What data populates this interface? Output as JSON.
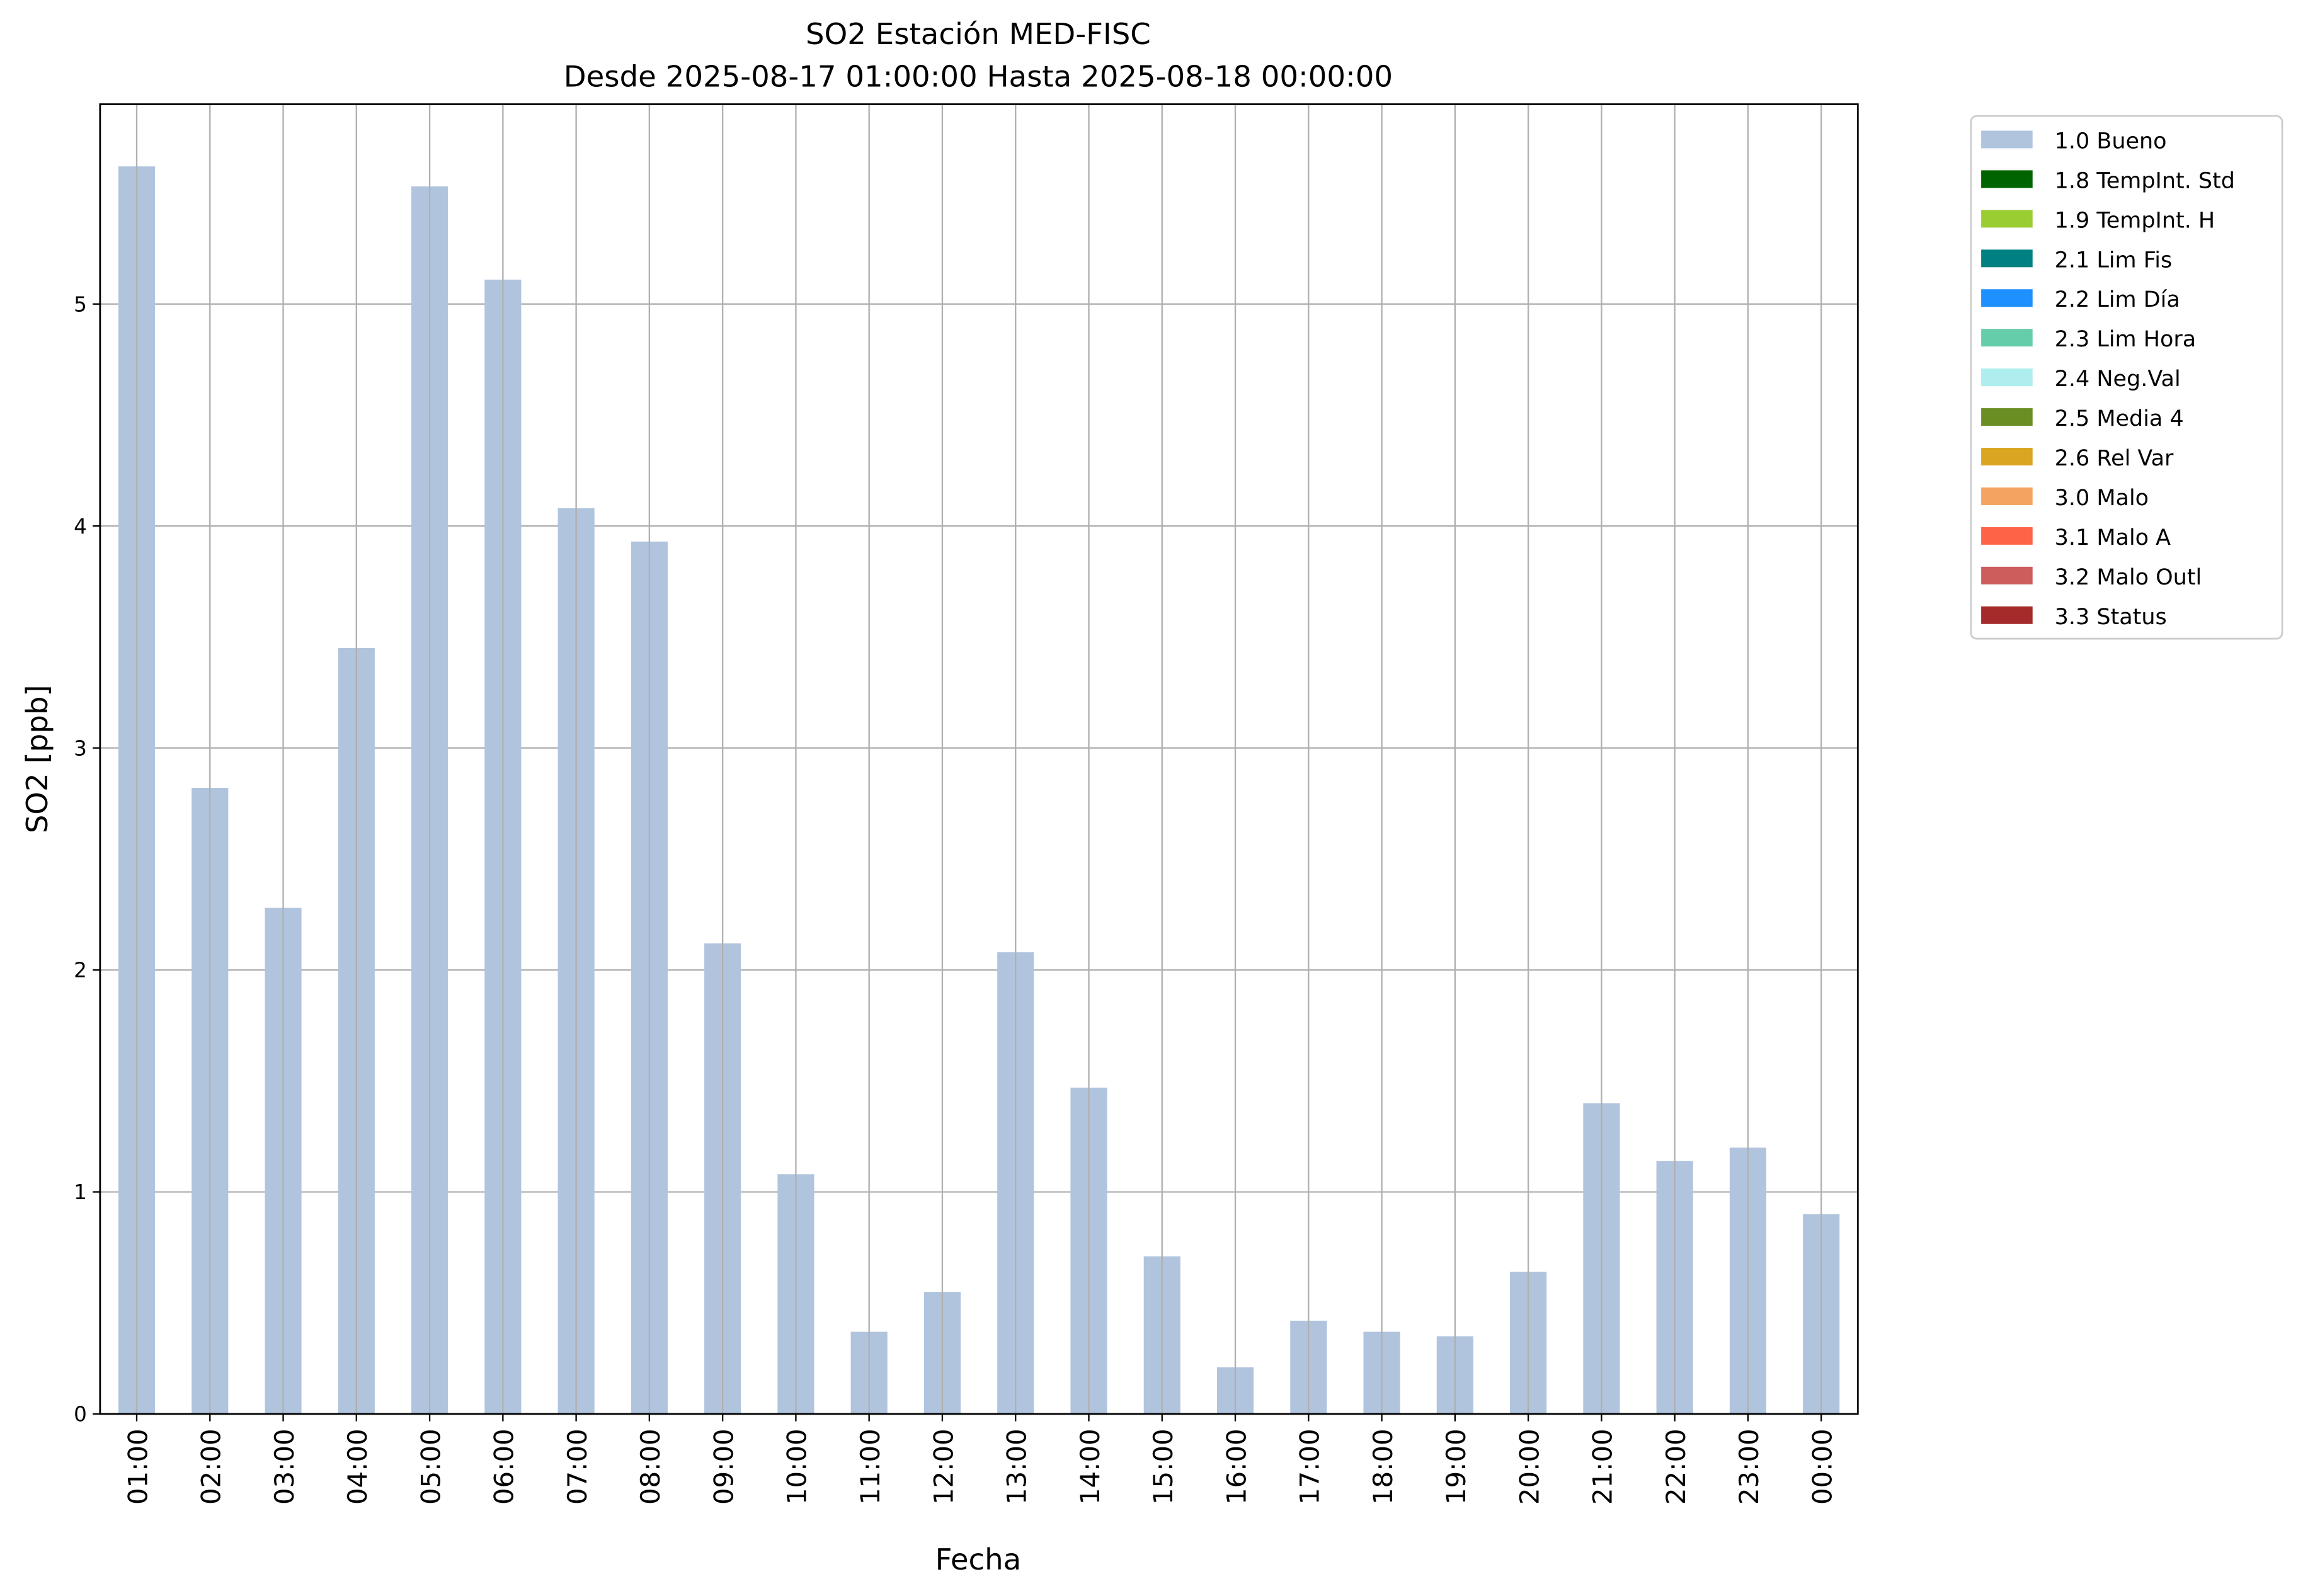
{
  "chart_data": {
    "type": "bar",
    "title": "SO2 Estación MED-FISC",
    "subtitle": "Desde 2025-08-17 01:00:00 Hasta 2025-08-18 00:00:00",
    "xlabel": "Fecha",
    "ylabel": "SO2 [ppb]",
    "ylim": [
      0,
      5.9
    ],
    "yticks": [
      0,
      1,
      2,
      3,
      4,
      5
    ],
    "grid": true,
    "legend_position": "outside-top-right",
    "categories": [
      "01:00",
      "02:00",
      "03:00",
      "04:00",
      "05:00",
      "06:00",
      "07:00",
      "08:00",
      "09:00",
      "10:00",
      "11:00",
      "12:00",
      "13:00",
      "14:00",
      "15:00",
      "16:00",
      "17:00",
      "18:00",
      "19:00",
      "20:00",
      "21:00",
      "22:00",
      "23:00",
      "00:00"
    ],
    "series": [
      {
        "name": "1.0 Bueno",
        "color": "#b0c4de",
        "values": [
          5.62,
          2.82,
          2.28,
          3.45,
          5.53,
          5.11,
          4.08,
          3.93,
          2.12,
          1.08,
          0.37,
          0.55,
          2.08,
          1.47,
          0.71,
          0.21,
          0.42,
          0.37,
          0.35,
          0.64,
          1.4,
          1.14,
          1.2,
          0.9
        ]
      }
    ],
    "legend": [
      {
        "label": "1.0 Bueno",
        "color": "#b0c4de"
      },
      {
        "label": "1.8 TempInt. Std",
        "color": "#006400"
      },
      {
        "label": "1.9 TempInt. H",
        "color": "#9acd32"
      },
      {
        "label": "2.1 Lim Fis",
        "color": "#008080"
      },
      {
        "label": "2.2 Lim Día",
        "color": "#1e90ff"
      },
      {
        "label": "2.3 Lim Hora",
        "color": "#66cdaa"
      },
      {
        "label": "2.4 Neg.Val",
        "color": "#afeeee"
      },
      {
        "label": "2.5 Media 4",
        "color": "#6b8e23"
      },
      {
        "label": "2.6 Rel Var",
        "color": "#daa520"
      },
      {
        "label": "3.0 Malo",
        "color": "#f4a460"
      },
      {
        "label": "3.1 Malo A",
        "color": "#ff6347"
      },
      {
        "label": "3.2 Malo Outl",
        "color": "#cd5c5c"
      },
      {
        "label": "3.3 Status",
        "color": "#a52a2a"
      }
    ]
  }
}
